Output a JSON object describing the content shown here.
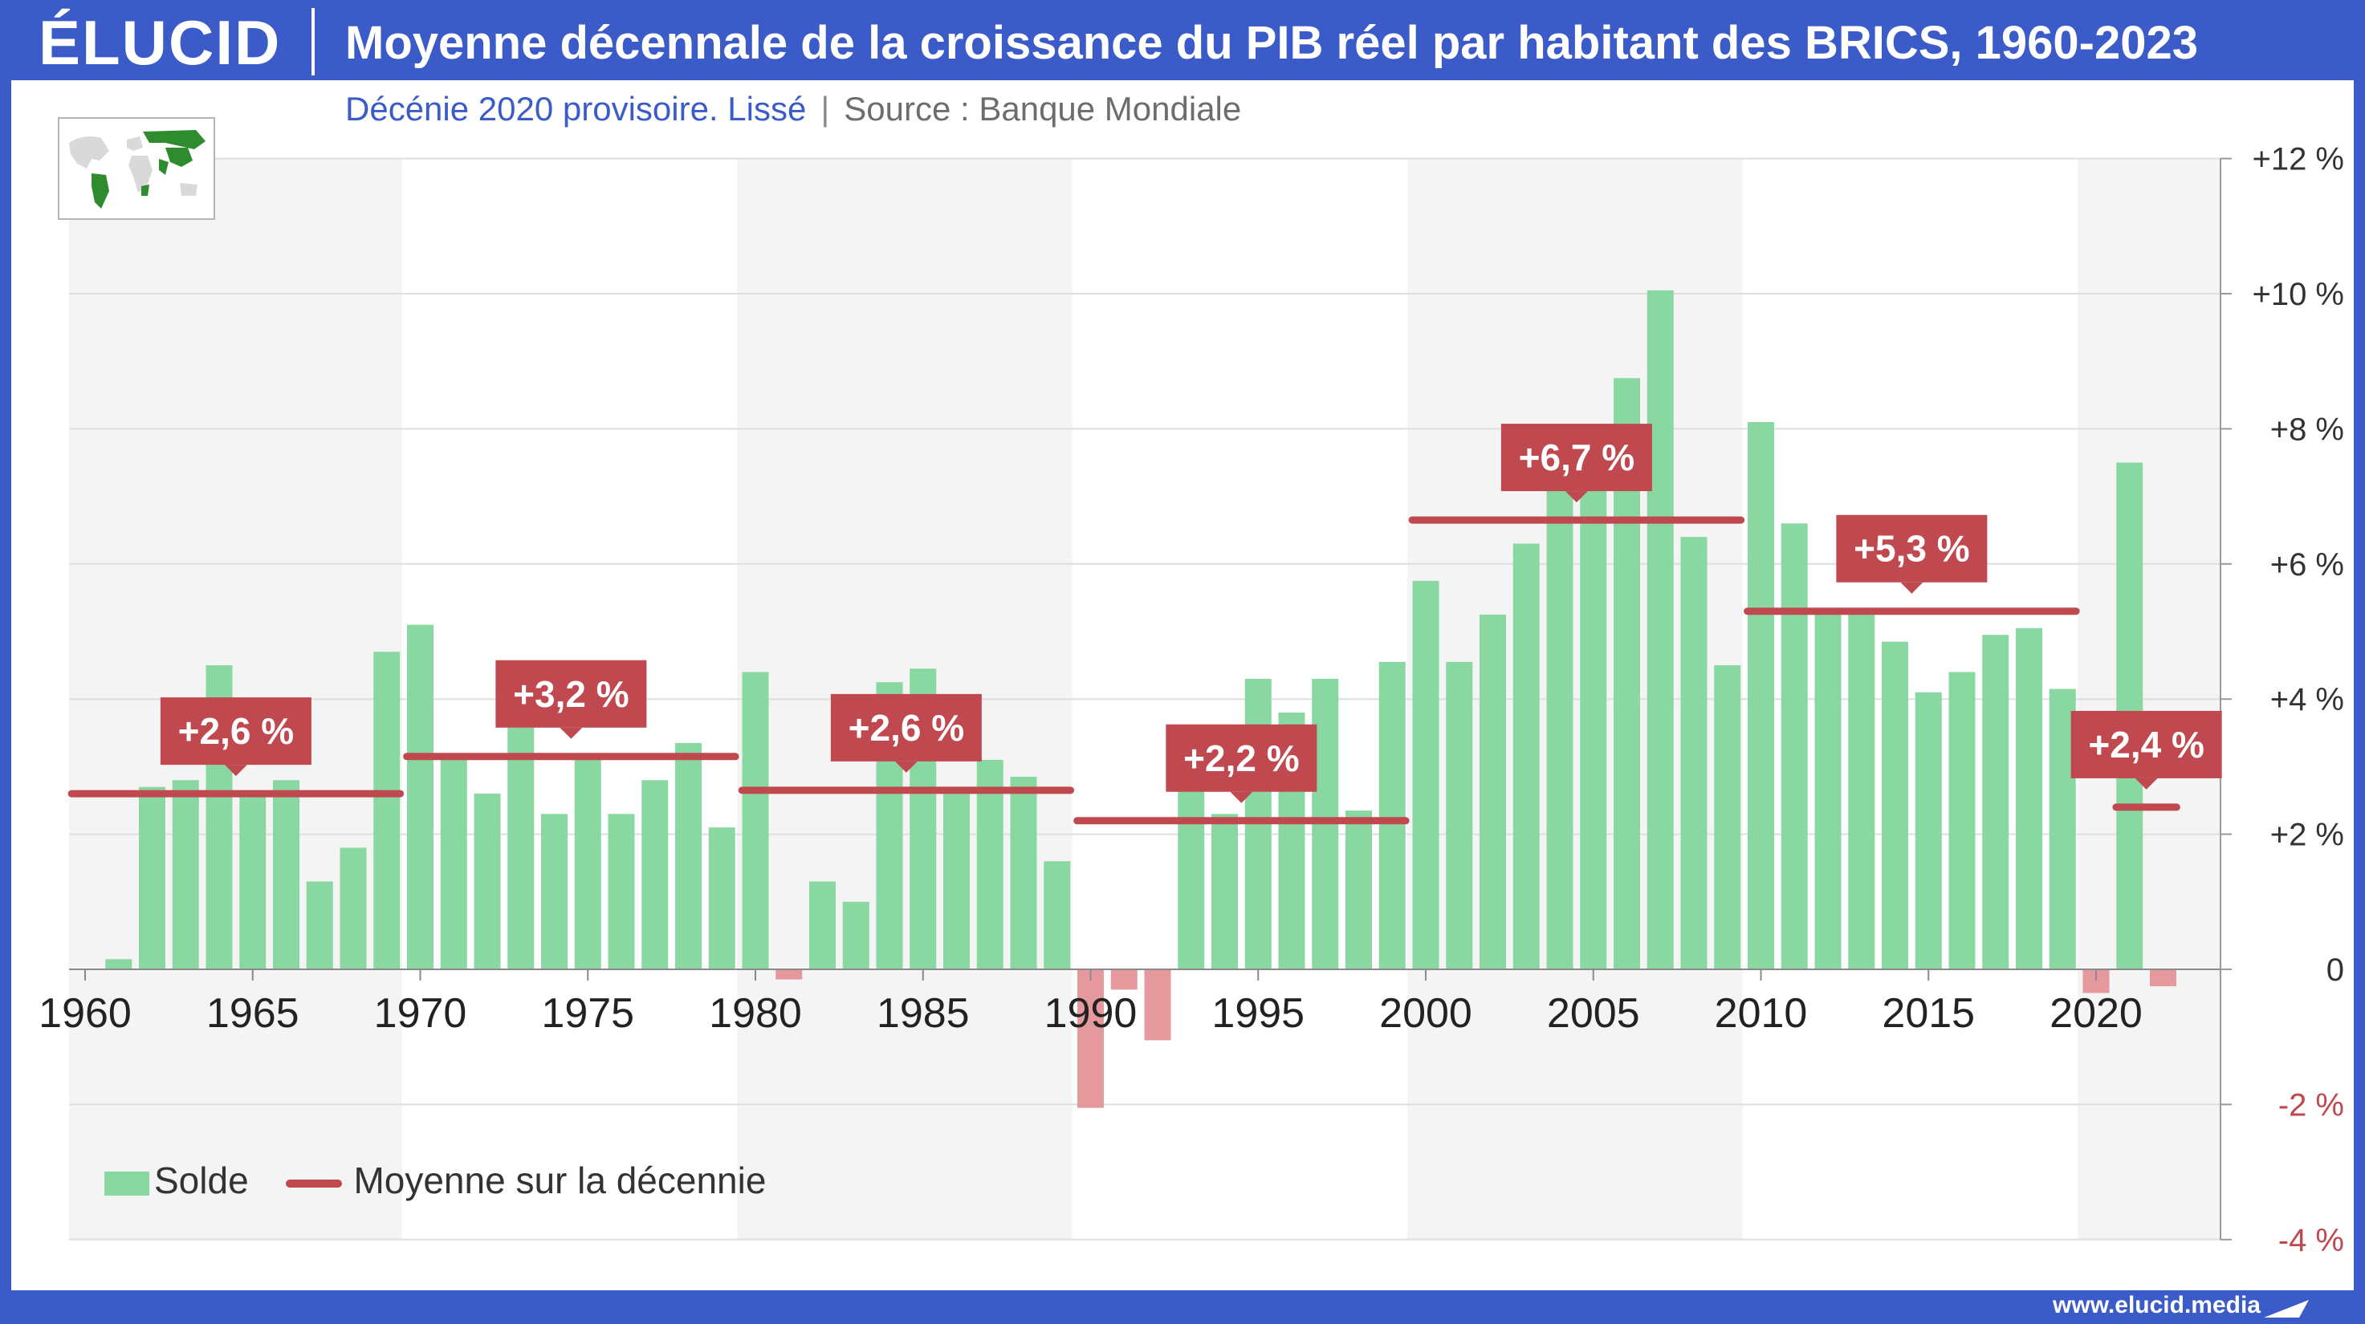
{
  "header": {
    "logo": "ÉLUCID",
    "title": "Moyenne décennale de la croissance du PIB réel par habitant des BRICS, 1960-2023"
  },
  "subtitle": {
    "note": "Décénie 2020 provisoire. Lissé",
    "separator": "|",
    "source": "Source : Banque Mondiale"
  },
  "footer": {
    "url": "www.elucid.media"
  },
  "icons": {
    "map": "world-map-icon",
    "brand": "elucid-arrow-icon"
  },
  "colors": {
    "brand_blue": "#3b5bc8",
    "bar_positive": "#8ad8a1",
    "bar_negative": "#e5999c",
    "average_line": "#c0484f",
    "label_bg": "#c0484f",
    "band_shade": "#f4f4f4"
  },
  "legend": {
    "bars": "Solde",
    "line": "Moyenne sur la décennie"
  },
  "chart_data": {
    "type": "bar",
    "title": "Moyenne décennale de la croissance du PIB réel par habitant des BRICS, 1960-2023",
    "ylim": [
      -4,
      12
    ],
    "y_axis_side": "right",
    "y_ticks": [
      {
        "value": 12,
        "label": "+12 %"
      },
      {
        "value": 10,
        "label": "+10 %"
      },
      {
        "value": 8,
        "label": "+8 %"
      },
      {
        "value": 6,
        "label": "+6 %"
      },
      {
        "value": 4,
        "label": "+4 %"
      },
      {
        "value": 2,
        "label": "+2 %"
      },
      {
        "value": 0,
        "label": "0"
      },
      {
        "value": -2,
        "label": "-2 %"
      },
      {
        "value": -4,
        "label": "-4 %"
      }
    ],
    "x_ticks": [
      1960,
      1965,
      1970,
      1975,
      1980,
      1985,
      1990,
      1995,
      2000,
      2005,
      2010,
      2015,
      2020
    ],
    "grid": true,
    "legend_position": "bottom-left",
    "shaded_decades": [
      1960,
      1980,
      2000,
      2020
    ],
    "series": [
      {
        "name": "Solde",
        "type": "bar",
        "x": [
          1961,
          1962,
          1963,
          1964,
          1965,
          1966,
          1967,
          1968,
          1969,
          1970,
          1971,
          1972,
          1973,
          1974,
          1975,
          1976,
          1977,
          1978,
          1979,
          1980,
          1981,
          1982,
          1983,
          1984,
          1985,
          1986,
          1987,
          1988,
          1989,
          1990,
          1991,
          1992,
          1993,
          1994,
          1995,
          1996,
          1997,
          1998,
          1999,
          2000,
          2001,
          2002,
          2003,
          2004,
          2005,
          2006,
          2007,
          2008,
          2009,
          2010,
          2011,
          2012,
          2013,
          2014,
          2015,
          2016,
          2017,
          2018,
          2019,
          2020,
          2021,
          2022
        ],
        "values": [
          0.15,
          2.7,
          2.8,
          4.5,
          2.6,
          2.8,
          1.3,
          1.8,
          4.7,
          5.1,
          3.2,
          2.6,
          4.5,
          2.3,
          3.2,
          2.3,
          2.8,
          3.35,
          2.1,
          4.4,
          -0.15,
          1.3,
          1.0,
          4.25,
          4.45,
          2.7,
          3.1,
          2.85,
          1.6,
          -2.05,
          -0.3,
          -1.05,
          2.85,
          2.3,
          4.3,
          3.8,
          4.3,
          2.35,
          4.55,
          5.75,
          4.55,
          5.25,
          6.3,
          7.1,
          7.25,
          8.75,
          10.05,
          6.4,
          4.5,
          8.1,
          6.6,
          5.3,
          5.3,
          4.85,
          4.1,
          4.4,
          4.95,
          5.05,
          4.15,
          -0.35,
          7.5,
          -0.25
        ]
      },
      {
        "name": "Moyenne sur la décennie",
        "type": "line",
        "segments": [
          {
            "from": 1960,
            "to": 1969,
            "value": 2.6,
            "label": "+2,6 %"
          },
          {
            "from": 1970,
            "to": 1979,
            "value": 3.15,
            "label": "+3,2 %"
          },
          {
            "from": 1980,
            "to": 1989,
            "value": 2.65,
            "label": "+2,6 %"
          },
          {
            "from": 1990,
            "to": 1999,
            "value": 2.2,
            "label": "+2,2 %"
          },
          {
            "from": 2000,
            "to": 2009,
            "value": 6.65,
            "label": "+6,7 %"
          },
          {
            "from": 2010,
            "to": 2019,
            "value": 5.3,
            "label": "+5,3 %"
          },
          {
            "from": 2021,
            "to": 2022,
            "value": 2.4,
            "label": "+2,4 %"
          }
        ]
      }
    ]
  }
}
